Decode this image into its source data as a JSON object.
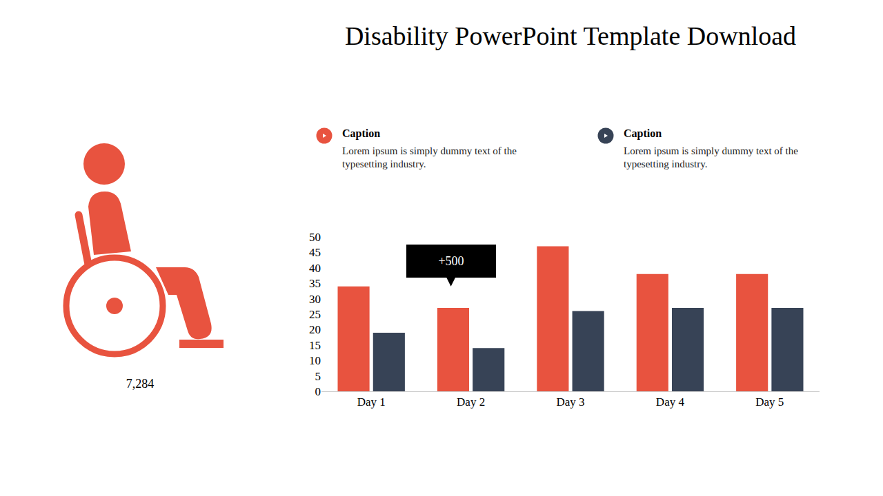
{
  "icon_value": "7,284",
  "chart_data": {
    "type": "bar",
    "title": "Disability PowerPoint Template Download",
    "categories": [
      "Day 1",
      "Day 2",
      "Day 3",
      "Day 4",
      "Day 5"
    ],
    "series": [
      {
        "name": "Caption",
        "color": "#e8533f",
        "values": [
          34,
          27,
          47,
          38,
          38
        ],
        "description": "Lorem ipsum is simply dummy text of the typesetting industry."
      },
      {
        "name": "Caption",
        "color": "#374356",
        "values": [
          19,
          14,
          26,
          27,
          27
        ],
        "description": "Lorem ipsum is simply dummy text of the typesetting industry."
      }
    ],
    "ylim": [
      0,
      50
    ],
    "yticks": [
      0,
      5,
      10,
      15,
      20,
      25,
      30,
      35,
      40,
      45,
      50
    ],
    "grid": false,
    "annotations": [
      {
        "text": "+500",
        "x": "Day 2",
        "y": 34
      }
    ]
  }
}
